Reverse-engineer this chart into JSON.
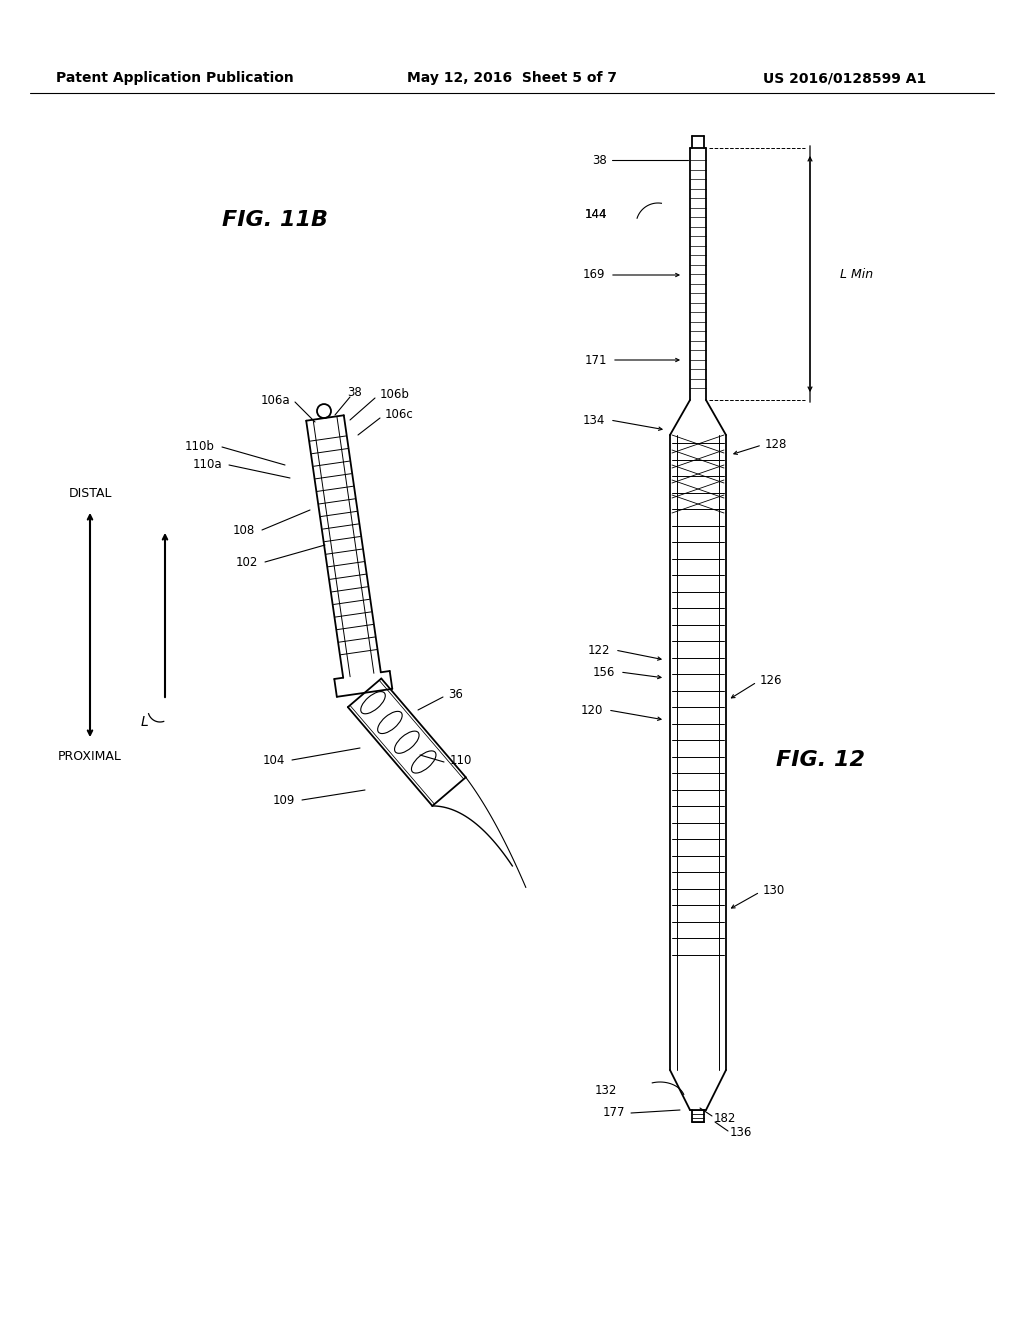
{
  "bg_color": "#ffffff",
  "header_left": "Patent Application Publication",
  "header_center": "May 12, 2016  Sheet 5 of 7",
  "header_right": "US 2016/0128599 A1",
  "fig11b_label": "FIG. 11B",
  "fig12_label": "FIG. 12"
}
